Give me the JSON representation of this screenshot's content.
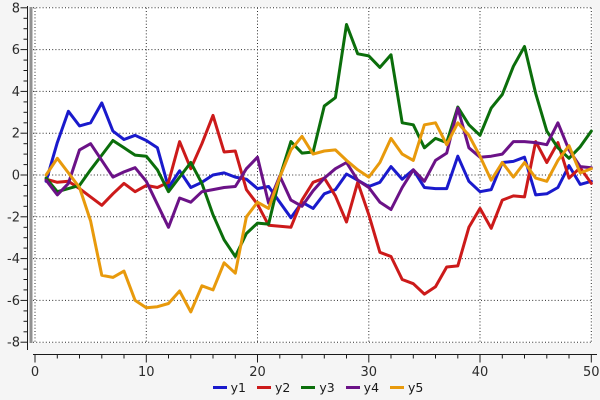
{
  "chart_data": {
    "type": "line",
    "title": "",
    "xlabel": "",
    "ylabel": "",
    "xlim": [
      0,
      50
    ],
    "ylim": [
      -8,
      8
    ],
    "grid": "dotted",
    "legend_position": "bottom-center",
    "x_major_ticks": [
      0,
      10,
      20,
      30,
      40,
      50
    ],
    "x_minor_step": 2,
    "y_major_ticks": [
      -8,
      -6,
      -4,
      -2,
      0,
      2,
      4,
      6,
      8
    ],
    "y_minor_step": 0.5,
    "x": [
      1,
      2,
      3,
      4,
      5,
      6,
      7,
      8,
      9,
      10,
      11,
      12,
      13,
      14,
      15,
      16,
      17,
      18,
      19,
      20,
      21,
      22,
      23,
      24,
      25,
      26,
      27,
      28,
      29,
      30,
      31,
      32,
      33,
      34,
      35,
      36,
      37,
      38,
      39,
      40,
      41,
      42,
      43,
      44,
      45,
      46,
      47,
      48,
      49,
      50
    ],
    "series": [
      {
        "name": "y1",
        "color": "#1a1acc",
        "values": [
          -0.3,
          1.55,
          3.05,
          2.35,
          2.5,
          3.45,
          2.1,
          1.7,
          1.9,
          1.65,
          1.3,
          -0.6,
          0.2,
          -0.6,
          -0.35,
          0.0,
          0.1,
          -0.1,
          -0.2,
          -0.65,
          -0.55,
          -1.3,
          -2.05,
          -1.3,
          -1.6,
          -0.9,
          -0.7,
          0.05,
          -0.25,
          -0.55,
          -0.35,
          0.4,
          -0.2,
          0.25,
          -0.6,
          -0.65,
          -0.65,
          0.9,
          -0.3,
          -0.8,
          -0.7,
          0.6,
          0.65,
          0.85,
          -0.95,
          -0.9,
          -0.6,
          0.45,
          -0.45,
          -0.3
        ]
      },
      {
        "name": "y2",
        "color": "#cc1a1a",
        "values": [
          -0.2,
          -0.35,
          -0.3,
          -0.65,
          -1.05,
          -1.45,
          -0.9,
          -0.4,
          -0.8,
          -0.5,
          -0.6,
          -0.35,
          1.6,
          0.3,
          1.5,
          2.85,
          1.1,
          1.15,
          -0.7,
          -1.4,
          -2.4,
          -2.45,
          -2.5,
          -1.2,
          -0.35,
          -0.15,
          -1.0,
          -2.25,
          -0.35,
          -1.9,
          -3.7,
          -3.9,
          -5.0,
          -5.2,
          -5.7,
          -5.35,
          -4.4,
          -4.35,
          -2.5,
          -1.6,
          -2.55,
          -1.2,
          -1.0,
          -1.05,
          1.6,
          0.6,
          1.55,
          -0.15,
          0.35,
          -0.4
        ]
      },
      {
        "name": "y3",
        "color": "#0b6e0b",
        "values": [
          -0.15,
          -0.8,
          -0.65,
          -0.5,
          0.25,
          0.95,
          1.65,
          1.3,
          0.95,
          0.9,
          0.25,
          -0.8,
          -0.1,
          0.6,
          -0.4,
          -1.9,
          -3.1,
          -3.9,
          -2.8,
          -2.3,
          -2.35,
          -0.1,
          1.6,
          1.05,
          1.1,
          3.3,
          3.7,
          7.2,
          5.8,
          5.7,
          5.15,
          5.75,
          2.5,
          2.4,
          1.3,
          1.75,
          1.55,
          3.25,
          2.4,
          1.9,
          3.2,
          3.85,
          5.2,
          6.15,
          3.9,
          2.1,
          1.3,
          0.8,
          1.35,
          2.1
        ]
      },
      {
        "name": "y4",
        "color": "#6b1287",
        "values": [
          -0.25,
          -0.95,
          -0.4,
          1.2,
          1.5,
          0.7,
          -0.1,
          0.15,
          0.35,
          -0.3,
          -1.4,
          -2.5,
          -1.1,
          -1.3,
          -0.8,
          -0.7,
          -0.6,
          -0.55,
          0.3,
          0.85,
          -1.35,
          -0.05,
          -1.2,
          -1.5,
          -0.75,
          -0.15,
          0.3,
          0.6,
          -0.25,
          -0.6,
          -1.3,
          -1.65,
          -0.6,
          0.25,
          -0.3,
          0.7,
          1.05,
          3.2,
          1.3,
          0.85,
          0.9,
          1.0,
          1.6,
          1.6,
          1.55,
          1.45,
          2.5,
          1.2,
          0.4,
          0.35
        ]
      },
      {
        "name": "y5",
        "color": "#e89a0c",
        "values": [
          0.0,
          0.8,
          0.1,
          -0.6,
          -2.2,
          -4.8,
          -4.9,
          -4.6,
          -6.0,
          -6.35,
          -6.3,
          -6.15,
          -5.55,
          -6.55,
          -5.3,
          -5.5,
          -4.2,
          -4.7,
          -2.0,
          -1.3,
          -1.6,
          -0.1,
          1.2,
          1.85,
          1.0,
          1.15,
          1.2,
          0.7,
          0.25,
          -0.1,
          0.6,
          1.75,
          1.0,
          0.7,
          2.4,
          2.5,
          1.45,
          2.5,
          1.9,
          0.9,
          -0.25,
          0.6,
          -0.1,
          0.6,
          -0.15,
          -0.3,
          0.7,
          1.4,
          0.1,
          0.3
        ]
      }
    ]
  },
  "colors": {
    "background": "#f5f5f5",
    "plot_background": "#ffffff",
    "axis_line": "#1a1a1a",
    "grid_dots": "#2a2a2a",
    "axis_bar": "#909090",
    "tick_label": "#2b2b2b"
  }
}
